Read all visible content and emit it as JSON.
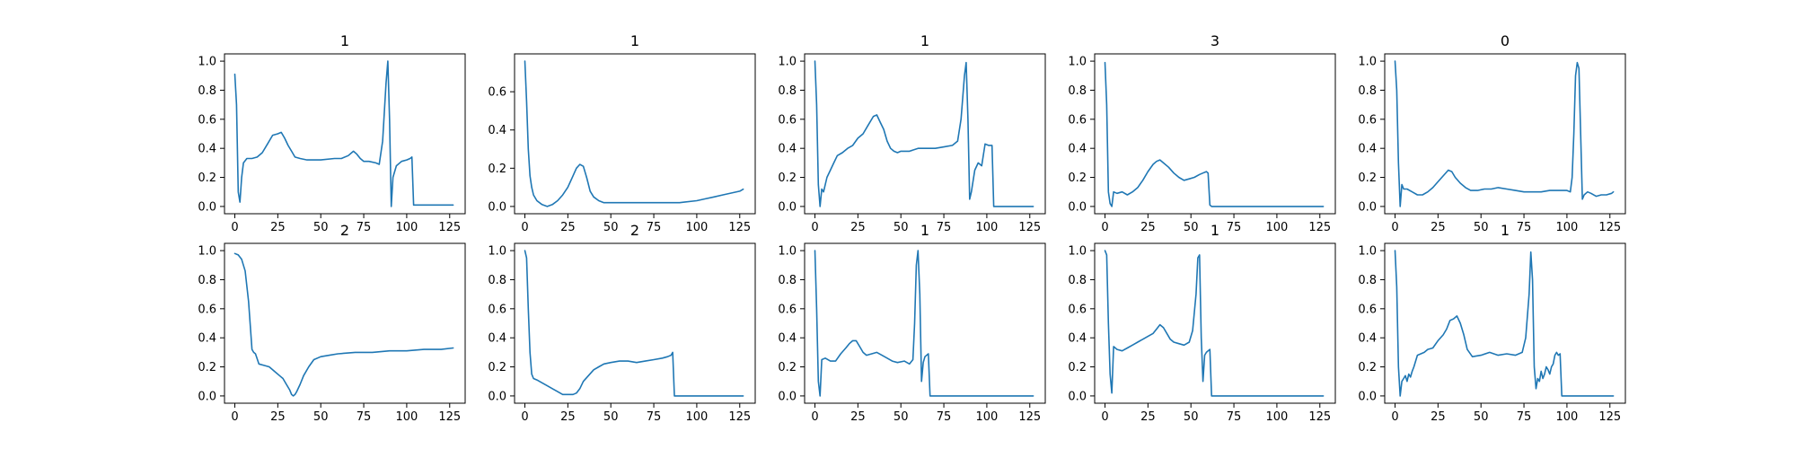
{
  "chart_data": [
    {
      "type": "line",
      "title": "1",
      "xlim": [
        -6,
        134
      ],
      "ylim": [
        -0.05,
        1.05
      ],
      "xticks": [
        0,
        25,
        50,
        75,
        100,
        125
      ],
      "yticks": [
        0.0,
        0.2,
        0.4,
        0.6,
        0.8,
        1.0
      ],
      "ytick_labels": [
        "0.0",
        "0.2",
        "0.4",
        "0.6",
        "0.8",
        "1.0"
      ],
      "series": [
        {
          "x": [
            0,
            1,
            2,
            3,
            4,
            5,
            7,
            10,
            13,
            16,
            19,
            22,
            25,
            27,
            29,
            31,
            33,
            35,
            38,
            42,
            50,
            58,
            62,
            66,
            69,
            71,
            73,
            75,
            78,
            82,
            84,
            86,
            88,
            89,
            90,
            91,
            92,
            94,
            97,
            100,
            102,
            103,
            104,
            110,
            120,
            127
          ],
          "y": [
            0.91,
            0.7,
            0.1,
            0.03,
            0.2,
            0.3,
            0.33,
            0.33,
            0.34,
            0.37,
            0.43,
            0.49,
            0.5,
            0.51,
            0.47,
            0.42,
            0.38,
            0.34,
            0.33,
            0.32,
            0.32,
            0.33,
            0.33,
            0.35,
            0.38,
            0.36,
            0.33,
            0.31,
            0.31,
            0.3,
            0.29,
            0.45,
            0.85,
            1.0,
            0.6,
            0.0,
            0.2,
            0.28,
            0.31,
            0.32,
            0.33,
            0.34,
            0.01,
            0.01,
            0.01,
            0.01
          ]
        }
      ]
    },
    {
      "type": "line",
      "title": "1",
      "xlim": [
        -6,
        134
      ],
      "ylim": [
        -0.038,
        0.798
      ],
      "xticks": [
        0,
        25,
        50,
        75,
        100,
        125
      ],
      "yticks": [
        0.0,
        0.2,
        0.4,
        0.6
      ],
      "ytick_labels": [
        "0.0",
        "0.2",
        "0.4",
        "0.6"
      ],
      "series": [
        {
          "x": [
            0,
            1,
            2,
            3,
            4,
            5,
            7,
            10,
            13,
            16,
            19,
            22,
            25,
            28,
            30,
            32,
            34,
            36,
            38,
            40,
            43,
            46,
            50,
            60,
            70,
            80,
            90,
            100,
            105,
            110,
            115,
            120,
            125,
            127
          ],
          "y": [
            0.76,
            0.55,
            0.3,
            0.16,
            0.1,
            0.06,
            0.03,
            0.01,
            0.0,
            0.01,
            0.03,
            0.06,
            0.1,
            0.16,
            0.2,
            0.22,
            0.21,
            0.15,
            0.08,
            0.05,
            0.03,
            0.02,
            0.02,
            0.02,
            0.02,
            0.02,
            0.02,
            0.03,
            0.04,
            0.05,
            0.06,
            0.07,
            0.08,
            0.09
          ]
        }
      ]
    },
    {
      "type": "line",
      "title": "1",
      "xlim": [
        -6,
        134
      ],
      "ylim": [
        -0.05,
        1.05
      ],
      "xticks": [
        0,
        25,
        50,
        75,
        100,
        125
      ],
      "yticks": [
        0.0,
        0.2,
        0.4,
        0.6,
        0.8,
        1.0
      ],
      "ytick_labels": [
        "0.0",
        "0.2",
        "0.4",
        "0.6",
        "0.8",
        "1.0"
      ],
      "series": [
        {
          "x": [
            0,
            1,
            2,
            3,
            4,
            5,
            7,
            9,
            11,
            13,
            16,
            19,
            22,
            25,
            28,
            31,
            34,
            36,
            38,
            40,
            42,
            44,
            46,
            48,
            50,
            55,
            60,
            65,
            70,
            75,
            80,
            83,
            85,
            87,
            88,
            89,
            90,
            91,
            93,
            95,
            97,
            99,
            101,
            103,
            104,
            110,
            120,
            127
          ],
          "y": [
            1.0,
            0.7,
            0.15,
            0.0,
            0.12,
            0.1,
            0.2,
            0.25,
            0.3,
            0.35,
            0.37,
            0.4,
            0.42,
            0.47,
            0.5,
            0.56,
            0.62,
            0.63,
            0.58,
            0.53,
            0.45,
            0.4,
            0.38,
            0.37,
            0.38,
            0.38,
            0.4,
            0.4,
            0.4,
            0.41,
            0.42,
            0.45,
            0.6,
            0.9,
            0.99,
            0.6,
            0.05,
            0.1,
            0.25,
            0.3,
            0.28,
            0.43,
            0.42,
            0.42,
            0.0,
            0.0,
            0.0,
            0.0
          ]
        }
      ]
    },
    {
      "type": "line",
      "title": "3",
      "xlim": [
        -6,
        134
      ],
      "ylim": [
        -0.05,
        1.05
      ],
      "xticks": [
        0,
        25,
        50,
        75,
        100,
        125
      ],
      "yticks": [
        0.0,
        0.2,
        0.4,
        0.6,
        0.8,
        1.0
      ],
      "ytick_labels": [
        "0.0",
        "0.2",
        "0.4",
        "0.6",
        "0.8",
        "1.0"
      ],
      "series": [
        {
          "x": [
            0,
            1,
            2,
            3,
            4,
            5,
            7,
            10,
            13,
            16,
            19,
            22,
            25,
            28,
            30,
            32,
            34,
            37,
            40,
            43,
            46,
            49,
            52,
            55,
            57,
            59,
            60,
            61,
            62,
            70,
            80,
            100,
            127
          ],
          "y": [
            0.99,
            0.7,
            0.1,
            0.02,
            0.0,
            0.1,
            0.09,
            0.1,
            0.08,
            0.1,
            0.13,
            0.18,
            0.24,
            0.29,
            0.31,
            0.32,
            0.3,
            0.27,
            0.23,
            0.2,
            0.18,
            0.19,
            0.2,
            0.22,
            0.23,
            0.24,
            0.23,
            0.01,
            0.0,
            0.0,
            0.0,
            0.0,
            0.0
          ]
        }
      ]
    },
    {
      "type": "line",
      "title": "0",
      "xlim": [
        -6,
        134
      ],
      "ylim": [
        -0.05,
        1.05
      ],
      "xticks": [
        0,
        25,
        50,
        75,
        100,
        125
      ],
      "yticks": [
        0.0,
        0.2,
        0.4,
        0.6,
        0.8,
        1.0
      ],
      "ytick_labels": [
        "0.0",
        "0.2",
        "0.4",
        "0.6",
        "0.8",
        "1.0"
      ],
      "series": [
        {
          "x": [
            0,
            1,
            2,
            3,
            4,
            5,
            7,
            10,
            13,
            16,
            19,
            22,
            25,
            28,
            31,
            33,
            35,
            38,
            41,
            44,
            48,
            52,
            56,
            60,
            65,
            70,
            75,
            80,
            85,
            90,
            95,
            100,
            102,
            103,
            104,
            105,
            106,
            107,
            108,
            109,
            110,
            112,
            114,
            117,
            120,
            123,
            126,
            127
          ],
          "y": [
            1.0,
            0.8,
            0.3,
            0.0,
            0.15,
            0.12,
            0.12,
            0.1,
            0.08,
            0.08,
            0.1,
            0.13,
            0.17,
            0.21,
            0.25,
            0.24,
            0.2,
            0.16,
            0.13,
            0.11,
            0.11,
            0.12,
            0.12,
            0.13,
            0.12,
            0.11,
            0.1,
            0.1,
            0.1,
            0.11,
            0.11,
            0.11,
            0.1,
            0.2,
            0.5,
            0.9,
            0.99,
            0.95,
            0.5,
            0.05,
            0.08,
            0.1,
            0.09,
            0.07,
            0.08,
            0.08,
            0.09,
            0.1
          ]
        }
      ]
    },
    {
      "type": "line",
      "title": "2",
      "xlim": [
        -6,
        134
      ],
      "ylim": [
        -0.05,
        1.05
      ],
      "xticks": [
        0,
        25,
        50,
        75,
        100,
        125
      ],
      "yticks": [
        0.0,
        0.2,
        0.4,
        0.6,
        0.8,
        1.0
      ],
      "ytick_labels": [
        "0.0",
        "0.2",
        "0.4",
        "0.6",
        "0.8",
        "1.0"
      ],
      "series": [
        {
          "x": [
            0,
            2,
            4,
            6,
            8,
            10,
            11,
            12,
            14,
            17,
            20,
            23,
            26,
            28,
            30,
            32,
            33,
            34,
            35,
            36,
            38,
            40,
            43,
            46,
            50,
            55,
            60,
            70,
            80,
            90,
            100,
            110,
            120,
            127
          ],
          "y": [
            0.98,
            0.97,
            0.94,
            0.86,
            0.65,
            0.32,
            0.3,
            0.29,
            0.22,
            0.21,
            0.2,
            0.17,
            0.14,
            0.12,
            0.08,
            0.04,
            0.01,
            0.0,
            0.01,
            0.03,
            0.08,
            0.14,
            0.2,
            0.25,
            0.27,
            0.28,
            0.29,
            0.3,
            0.3,
            0.31,
            0.31,
            0.32,
            0.32,
            0.33
          ]
        }
      ]
    },
    {
      "type": "line",
      "title": "2",
      "xlim": [
        -6,
        134
      ],
      "ylim": [
        -0.05,
        1.05
      ],
      "xticks": [
        0,
        25,
        50,
        75,
        100,
        125
      ],
      "yticks": [
        0.0,
        0.2,
        0.4,
        0.6,
        0.8,
        1.0
      ],
      "ytick_labels": [
        "0.0",
        "0.2",
        "0.4",
        "0.6",
        "0.8",
        "1.0"
      ],
      "series": [
        {
          "x": [
            0,
            1,
            2,
            3,
            4,
            5,
            7,
            10,
            13,
            16,
            19,
            22,
            25,
            28,
            30,
            32,
            34,
            37,
            40,
            43,
            46,
            50,
            55,
            60,
            65,
            70,
            75,
            80,
            83,
            85,
            86,
            87,
            90,
            100,
            110,
            127
          ],
          "y": [
            1.0,
            0.95,
            0.6,
            0.3,
            0.15,
            0.12,
            0.11,
            0.09,
            0.07,
            0.05,
            0.03,
            0.01,
            0.01,
            0.01,
            0.02,
            0.05,
            0.1,
            0.14,
            0.18,
            0.2,
            0.22,
            0.23,
            0.24,
            0.24,
            0.23,
            0.24,
            0.25,
            0.26,
            0.27,
            0.28,
            0.3,
            0.0,
            0.0,
            0.0,
            0.0,
            0.0
          ]
        }
      ]
    },
    {
      "type": "line",
      "title": "1",
      "xlim": [
        -6,
        134
      ],
      "ylim": [
        -0.05,
        1.05
      ],
      "xticks": [
        0,
        25,
        50,
        75,
        100,
        125
      ],
      "yticks": [
        0.0,
        0.2,
        0.4,
        0.6,
        0.8,
        1.0
      ],
      "ytick_labels": [
        "0.0",
        "0.2",
        "0.4",
        "0.6",
        "0.8",
        "1.0"
      ],
      "series": [
        {
          "x": [
            0,
            1,
            2,
            3,
            4,
            6,
            9,
            12,
            15,
            18,
            20,
            22,
            24,
            26,
            28,
            30,
            33,
            36,
            39,
            42,
            45,
            48,
            52,
            55,
            57,
            58,
            59,
            60,
            61,
            62,
            63,
            64,
            65,
            66,
            67,
            68,
            69,
            75,
            90,
            110,
            127
          ],
          "y": [
            1.0,
            0.6,
            0.1,
            0.0,
            0.25,
            0.26,
            0.24,
            0.24,
            0.29,
            0.33,
            0.36,
            0.38,
            0.38,
            0.34,
            0.3,
            0.28,
            0.29,
            0.3,
            0.28,
            0.26,
            0.24,
            0.23,
            0.24,
            0.22,
            0.25,
            0.5,
            0.9,
            1.0,
            0.7,
            0.1,
            0.23,
            0.27,
            0.28,
            0.29,
            0.0,
            0.0,
            0.0,
            0.0,
            0.0,
            0.0,
            0.0
          ]
        }
      ]
    },
    {
      "type": "line",
      "title": "1",
      "xlim": [
        -6,
        134
      ],
      "ylim": [
        -0.05,
        1.05
      ],
      "xticks": [
        0,
        25,
        50,
        75,
        100,
        125
      ],
      "yticks": [
        0.0,
        0.2,
        0.4,
        0.6,
        0.8,
        1.0
      ],
      "ytick_labels": [
        "0.0",
        "0.2",
        "0.4",
        "0.6",
        "0.8",
        "1.0"
      ],
      "series": [
        {
          "x": [
            0,
            1,
            2,
            3,
            4,
            5,
            7,
            10,
            13,
            16,
            19,
            22,
            25,
            28,
            30,
            32,
            34,
            36,
            38,
            40,
            43,
            46,
            49,
            51,
            53,
            54,
            55,
            56,
            57,
            58,
            59,
            60,
            61,
            62,
            70,
            80,
            100,
            127
          ],
          "y": [
            1.0,
            0.97,
            0.5,
            0.15,
            0.02,
            0.34,
            0.32,
            0.31,
            0.33,
            0.35,
            0.37,
            0.39,
            0.41,
            0.43,
            0.46,
            0.49,
            0.47,
            0.43,
            0.39,
            0.37,
            0.36,
            0.35,
            0.37,
            0.45,
            0.7,
            0.95,
            0.97,
            0.4,
            0.1,
            0.28,
            0.3,
            0.31,
            0.32,
            0.0,
            0.0,
            0.0,
            0.0,
            0.0
          ]
        }
      ]
    },
    {
      "type": "line",
      "title": "1",
      "xlim": [
        -6,
        134
      ],
      "ylim": [
        -0.05,
        1.05
      ],
      "xticks": [
        0,
        25,
        50,
        75,
        100,
        125
      ],
      "yticks": [
        0.0,
        0.2,
        0.4,
        0.6,
        0.8,
        1.0
      ],
      "ytick_labels": [
        "0.0",
        "0.2",
        "0.4",
        "0.6",
        "0.8",
        "1.0"
      ],
      "series": [
        {
          "x": [
            0,
            1,
            2,
            3,
            4,
            5,
            6,
            7,
            8,
            9,
            10,
            11,
            13,
            15,
            17,
            19,
            22,
            25,
            28,
            30,
            32,
            34,
            36,
            38,
            40,
            42,
            45,
            50,
            55,
            60,
            65,
            70,
            74,
            76,
            78,
            79,
            80,
            81,
            82,
            83,
            84,
            85,
            86,
            87,
            88,
            89,
            90,
            91,
            92,
            93,
            94,
            95,
            96,
            97,
            100,
            110,
            127
          ],
          "y": [
            1.0,
            0.75,
            0.2,
            0.0,
            0.1,
            0.12,
            0.14,
            0.1,
            0.15,
            0.13,
            0.17,
            0.2,
            0.28,
            0.29,
            0.3,
            0.32,
            0.33,
            0.38,
            0.42,
            0.46,
            0.52,
            0.53,
            0.55,
            0.5,
            0.42,
            0.32,
            0.27,
            0.28,
            0.3,
            0.28,
            0.29,
            0.28,
            0.3,
            0.4,
            0.7,
            0.99,
            0.8,
            0.2,
            0.05,
            0.12,
            0.1,
            0.17,
            0.12,
            0.15,
            0.2,
            0.18,
            0.15,
            0.2,
            0.22,
            0.28,
            0.3,
            0.28,
            0.29,
            0.0,
            0.0,
            0.0,
            0.0
          ]
        }
      ]
    }
  ]
}
